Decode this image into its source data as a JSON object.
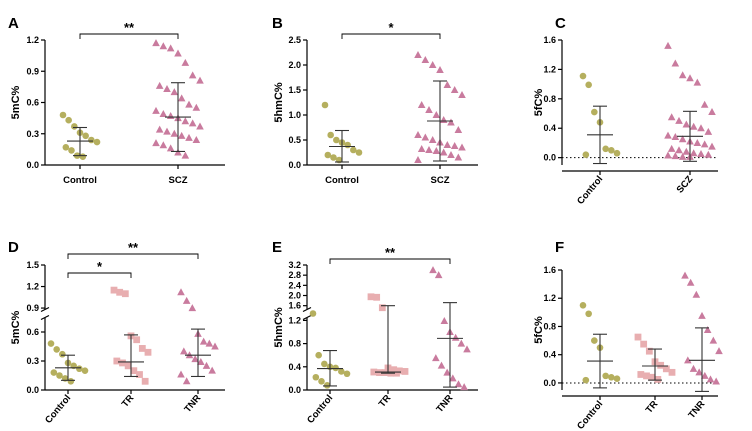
{
  "figure_title": "",
  "colors": {
    "control": "#B5AF5E",
    "tr": "#E8AEB0",
    "scz": "#C97B9E",
    "tnr": "#C97B9E",
    "axis": "#000000",
    "error_bar": "#333333"
  },
  "chart_data": [
    {
      "panel": "A",
      "type": "scatter",
      "ylabel": "5mC%",
      "ylim": [
        0,
        1.2
      ],
      "yticks": [
        "0.0",
        "0.3",
        "0.6",
        "0.9",
        "1.2"
      ],
      "categories": [
        "Control",
        "SCZ"
      ],
      "series": [
        {
          "name": "Control",
          "marker": "circle",
          "color_key": "control",
          "values": [
            0.48,
            0.43,
            0.37,
            0.31,
            0.28,
            0.24,
            0.22,
            0.17,
            0.14,
            0.09,
            0.08
          ],
          "mean": 0.23,
          "sd_low": 0.09,
          "sd_high": 0.36
        },
        {
          "name": "SCZ",
          "marker": "triangle",
          "color_key": "scz",
          "values": [
            1.17,
            1.14,
            1.12,
            1.07,
            0.98,
            0.86,
            0.81,
            0.76,
            0.73,
            0.7,
            0.64,
            0.58,
            0.55,
            0.52,
            0.49,
            0.47,
            0.45,
            0.42,
            0.4,
            0.37,
            0.34,
            0.32,
            0.3,
            0.28,
            0.26,
            0.24,
            0.21,
            0.19,
            0.16,
            0.12,
            0.09
          ],
          "mean": 0.46,
          "sd_low": 0.13,
          "sd_high": 0.79
        }
      ],
      "significance": [
        {
          "from": 0,
          "to": 1,
          "label": "**"
        }
      ]
    },
    {
      "panel": "B",
      "type": "scatter",
      "ylabel": "5hmC%",
      "ylim": [
        0,
        2.5
      ],
      "yticks": [
        "0.0",
        "0.5",
        "1.0",
        "1.5",
        "2.0",
        "2.5"
      ],
      "categories": [
        "Control",
        "SCZ"
      ],
      "series": [
        {
          "name": "Control",
          "marker": "circle",
          "color_key": "control",
          "values": [
            1.2,
            0.6,
            0.5,
            0.45,
            0.4,
            0.3,
            0.25,
            0.2,
            0.15,
            0.1
          ],
          "mean": 0.37,
          "sd_low": 0.06,
          "sd_high": 0.69
        },
        {
          "name": "SCZ",
          "marker": "triangle",
          "color_key": "scz",
          "values": [
            2.2,
            2.1,
            2.0,
            1.9,
            1.6,
            1.5,
            1.4,
            1.2,
            1.1,
            1.0,
            0.9,
            0.85,
            0.7,
            0.6,
            0.55,
            0.5,
            0.45,
            0.4,
            0.38,
            0.35,
            0.32,
            0.3,
            0.28,
            0.25,
            0.2,
            0.15,
            0.1
          ],
          "mean": 0.88,
          "sd_low": 0.08,
          "sd_high": 1.68
        }
      ],
      "significance": [
        {
          "from": 0,
          "to": 1,
          "label": "*"
        }
      ]
    },
    {
      "panel": "C",
      "type": "scatter",
      "ylabel": "5fC%",
      "ylim": [
        -0.1,
        1.6
      ],
      "yticks": [
        "0.0",
        "0.4",
        "0.8",
        "1.2",
        "1.6"
      ],
      "zero_line": true,
      "categories": [
        "Control",
        "SCZ"
      ],
      "series": [
        {
          "name": "Control",
          "marker": "circle",
          "color_key": "control",
          "values": [
            1.11,
            0.99,
            0.62,
            0.48,
            0.12,
            0.1,
            0.06,
            0.04
          ],
          "mean": 0.31,
          "sd_low": -0.08,
          "sd_high": 0.7
        },
        {
          "name": "SCZ",
          "marker": "triangle",
          "color_key": "scz",
          "values": [
            1.52,
            1.28,
            1.12,
            1.08,
            1.02,
            0.72,
            0.62,
            0.55,
            0.5,
            0.45,
            0.42,
            0.4,
            0.35,
            0.3,
            0.28,
            0.25,
            0.22,
            0.2,
            0.18,
            0.15,
            0.12,
            0.1,
            0.08,
            0.06,
            0.05,
            0.04,
            0.03,
            0.02,
            0.01,
            0.01
          ],
          "mean": 0.29,
          "sd_low": -0.05,
          "sd_high": 0.63
        }
      ],
      "significance": []
    },
    {
      "panel": "D",
      "type": "scatter",
      "ylabel": "5mC%",
      "ylim": [
        0,
        1.5
      ],
      "axis_break": [
        0.75,
        0.88
      ],
      "yticks": [
        "0.0",
        "0.3",
        "0.6",
        "0.9",
        "1.2",
        "1.5"
      ],
      "categories": [
        "Control",
        "TR",
        "TNR"
      ],
      "series": [
        {
          "name": "Control",
          "marker": "circle",
          "color_key": "control",
          "values": [
            0.48,
            0.42,
            0.37,
            0.28,
            0.25,
            0.22,
            0.2,
            0.18,
            0.15,
            0.12,
            0.09
          ],
          "mean": 0.23,
          "sd_low": 0.1,
          "sd_high": 0.36
        },
        {
          "name": "TR",
          "marker": "square",
          "color_key": "tr",
          "values": [
            1.15,
            1.12,
            1.1,
            0.56,
            0.52,
            0.43,
            0.39,
            0.3,
            0.28,
            0.25,
            0.2,
            0.16,
            0.09
          ],
          "mean": 0.29,
          "sd_low": 0.14,
          "sd_high": 0.57
        },
        {
          "name": "TNR",
          "marker": "triangle",
          "color_key": "tnr",
          "values": [
            1.12,
            1.0,
            0.9,
            0.58,
            0.5,
            0.48,
            0.45,
            0.4,
            0.36,
            0.32,
            0.29,
            0.25,
            0.2,
            0.16,
            0.09
          ],
          "mean": 0.36,
          "sd_low": 0.14,
          "sd_high": 0.63
        }
      ],
      "significance": [
        {
          "from": 0,
          "to": 1,
          "label": "*"
        },
        {
          "from": 0,
          "to": 2,
          "label": "**"
        }
      ]
    },
    {
      "panel": "E",
      "type": "scatter",
      "ylabel": "5hmC%",
      "ylim": [
        0,
        3.2
      ],
      "axis_break": [
        1.25,
        1.45
      ],
      "yticks": [
        "0.0",
        "0.4",
        "0.8",
        "1.2",
        "1.6",
        "2.0",
        "2.4",
        "2.8",
        "3.2"
      ],
      "categories": [
        "Control",
        "TR",
        "TNR"
      ],
      "series": [
        {
          "name": "Control",
          "marker": "circle",
          "color_key": "control",
          "values": [
            1.4,
            0.6,
            0.45,
            0.4,
            0.38,
            0.32,
            0.28,
            0.22,
            0.15,
            0.08
          ],
          "mean": 0.37,
          "sd_low": 0.07,
          "sd_high": 0.68
        },
        {
          "name": "TR",
          "marker": "square",
          "color_key": "tr",
          "values": [
            1.95,
            1.93,
            1.52,
            0.38,
            0.35,
            0.33,
            0.32,
            0.31,
            0.3,
            0.3,
            0.29,
            0.29
          ],
          "mean": 0.31,
          "sd_low": 0.29,
          "sd_high": 1.6
        },
        {
          "name": "TNR",
          "marker": "triangle",
          "color_key": "tnr",
          "values": [
            3.0,
            2.8,
            1.19,
            1.0,
            0.9,
            0.8,
            0.7,
            0.55,
            0.42,
            0.3,
            0.2,
            0.1,
            0.05
          ],
          "mean": 0.89,
          "sd_low": 0.05,
          "sd_high": 1.72
        }
      ],
      "significance": [
        {
          "from": 0,
          "to": 2,
          "label": "**"
        }
      ]
    },
    {
      "panel": "F",
      "type": "scatter",
      "ylabel": "5fC%",
      "ylim": [
        -0.1,
        1.6
      ],
      "yticks": [
        "0.0",
        "0.4",
        "0.8",
        "1.2",
        "1.6"
      ],
      "zero_line": true,
      "categories": [
        "Control",
        "TR",
        "TNR"
      ],
      "series": [
        {
          "name": "Control",
          "marker": "circle",
          "color_key": "control",
          "values": [
            1.1,
            0.98,
            0.6,
            0.5,
            0.1,
            0.08,
            0.06,
            0.04
          ],
          "mean": 0.31,
          "sd_low": -0.07,
          "sd_high": 0.69
        },
        {
          "name": "TR",
          "marker": "square",
          "color_key": "tr",
          "values": [
            0.65,
            0.55,
            0.45,
            0.3,
            0.25,
            0.2,
            0.15,
            0.12,
            0.1,
            0.08,
            0.05
          ],
          "mean": 0.24,
          "sd_low": 0.04,
          "sd_high": 0.48
        },
        {
          "name": "TNR",
          "marker": "triangle",
          "color_key": "tnr",
          "values": [
            1.52,
            1.42,
            1.25,
            0.95,
            0.75,
            0.6,
            0.45,
            0.32,
            0.2,
            0.15,
            0.1,
            0.05,
            0.02
          ],
          "mean": 0.32,
          "sd_low": -0.12,
          "sd_high": 0.78
        }
      ],
      "significance": []
    }
  ]
}
